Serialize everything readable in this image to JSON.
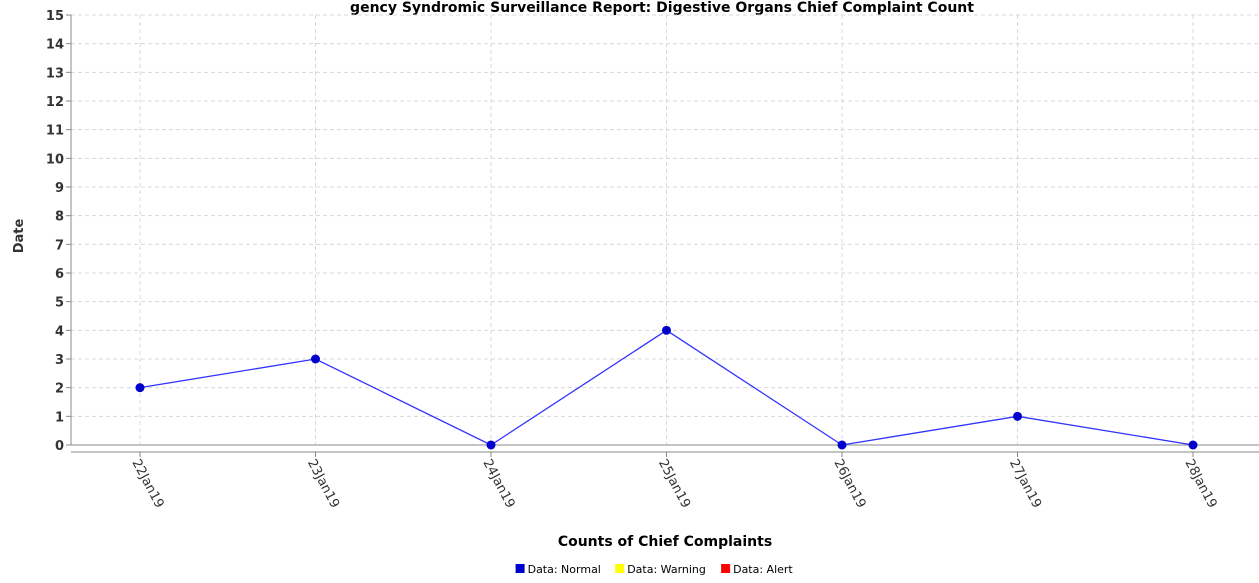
{
  "chart_data": {
    "type": "line",
    "title": "gency Syndromic Surveillance Report: Digestive Organs Chief Complaint Count",
    "xlabel": "Counts of Chief Complaints",
    "ylabel": "Date",
    "categories": [
      "22Jan19",
      "23Jan19",
      "24Jan19",
      "25Jan19",
      "26Jan19",
      "27Jan19",
      "28Jan19"
    ],
    "series": [
      {
        "name": "Data: Normal",
        "values": [
          2,
          3,
          0,
          4,
          0,
          1,
          0
        ]
      }
    ],
    "ylim": [
      0,
      15
    ],
    "yticks": [
      0,
      1,
      2,
      3,
      4,
      5,
      6,
      7,
      8,
      9,
      10,
      11,
      12,
      13,
      14,
      15
    ],
    "grid": true,
    "legend": {
      "placement": "bottom-center",
      "entries": [
        {
          "label": "Data: Normal",
          "color": "#0000cc"
        },
        {
          "label": "Data: Warning",
          "color": "#ffff00"
        },
        {
          "label": "Data: Alert",
          "color": "#ff0000"
        }
      ]
    },
    "colors": {
      "line": "#3333ff",
      "point": "#0000cc",
      "grid": "#d8d8d8",
      "axis": "#888888"
    }
  }
}
